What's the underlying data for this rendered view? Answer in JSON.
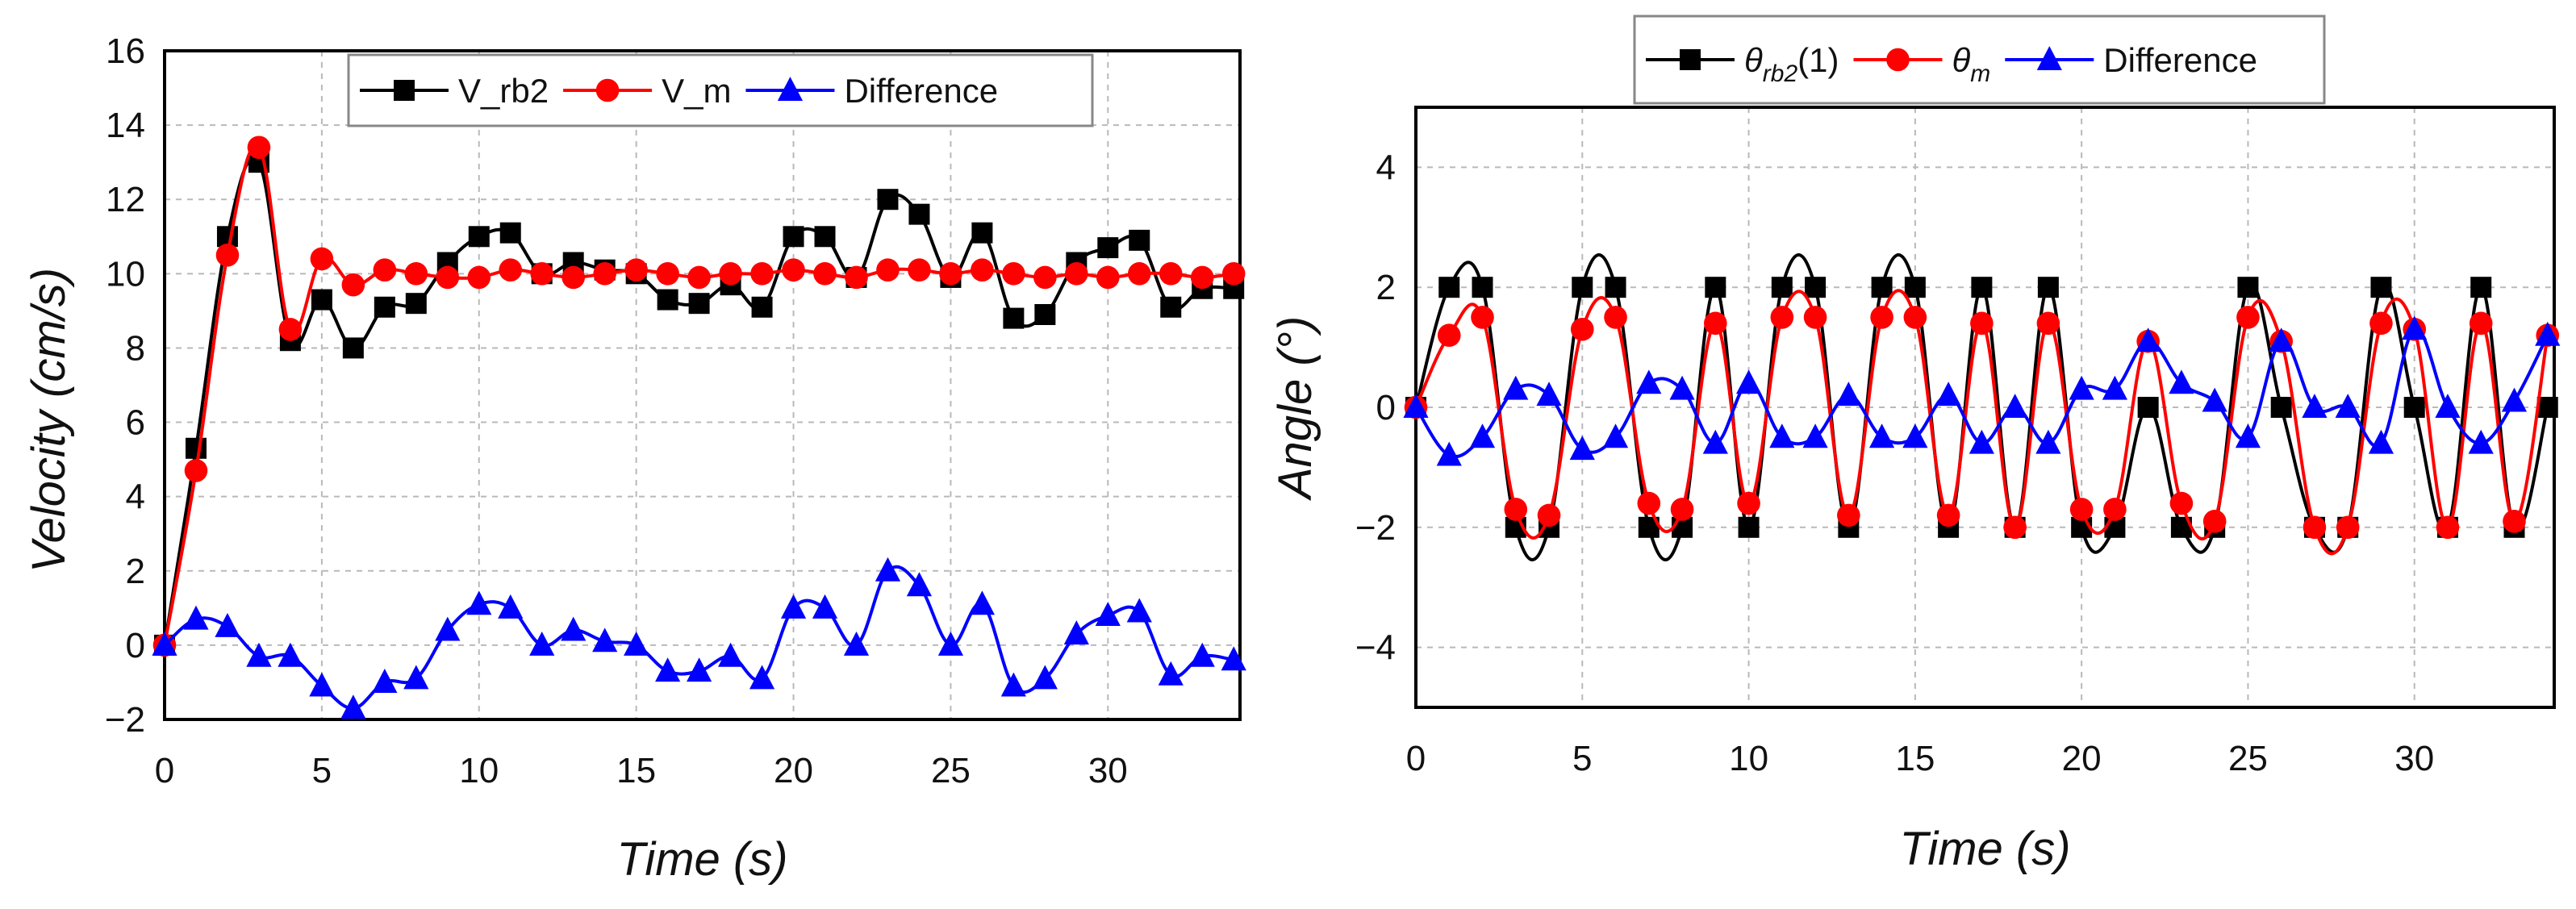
{
  "chart_data": [
    {
      "type": "line",
      "xlabel": "Time (s)",
      "ylabel": "Velocity (cm/s)",
      "xlim": [
        0,
        34.2
      ],
      "ylim": [
        -2,
        16
      ],
      "xticks": [
        "0",
        "5",
        "10",
        "15",
        "20",
        "25",
        "30"
      ],
      "yticks": [
        "16",
        "14",
        "12",
        "10",
        "8",
        "6",
        "4",
        "2",
        "0",
        "−2"
      ],
      "grid": true,
      "legend": "top-center",
      "x": [
        0,
        1,
        2,
        3,
        4,
        5,
        6,
        7,
        8,
        9,
        10,
        11,
        12,
        13,
        14,
        15,
        16,
        17,
        18,
        19,
        20,
        21,
        22,
        23,
        24,
        25,
        26,
        27,
        28,
        29,
        30,
        31,
        32,
        33,
        34
      ],
      "series": [
        {
          "name": "V_rb2",
          "color": "#000000",
          "marker": "square",
          "values": [
            0,
            5.3,
            11,
            13,
            8.2,
            9.3,
            8,
            9.1,
            9.2,
            10.3,
            11,
            11.1,
            10,
            10.3,
            10.1,
            10,
            9.3,
            9.2,
            9.7,
            9.1,
            11,
            11,
            9.9,
            12,
            11.6,
            9.9,
            11.1,
            8.8,
            8.9,
            10.3,
            10.7,
            10.9,
            9.1,
            9.6,
            9.6
          ]
        },
        {
          "name": "V_m",
          "color": "#ff0000",
          "marker": "circle",
          "values": [
            0,
            4.7,
            10.5,
            13.4,
            8.5,
            10.4,
            9.7,
            10.1,
            10,
            9.9,
            9.9,
            10.1,
            10,
            9.9,
            10,
            10.1,
            10,
            9.9,
            10,
            10,
            10.1,
            10,
            9.9,
            10.1,
            10.1,
            10,
            10.1,
            10,
            9.9,
            10,
            9.9,
            10,
            10,
            9.9,
            10
          ]
        },
        {
          "name": "Difference",
          "color": "#0000ff",
          "marker": "triangle",
          "values": [
            0,
            0.7,
            0.5,
            -0.3,
            -0.3,
            -1.1,
            -1.7,
            -1,
            -0.9,
            0.4,
            1.1,
            1,
            0,
            0.4,
            0.1,
            0,
            -0.7,
            -0.7,
            -0.3,
            -0.9,
            1,
            1,
            0,
            2,
            1.6,
            0,
            1.1,
            -1.1,
            -0.9,
            0.3,
            0.8,
            0.9,
            -0.8,
            -0.3,
            -0.4
          ]
        }
      ]
    },
    {
      "type": "line",
      "xlabel": "Time (s)",
      "ylabel": "Angle (°)",
      "xlim": [
        0,
        34.2
      ],
      "ylim": [
        -5,
        5
      ],
      "xticks": [
        "0",
        "5",
        "10",
        "15",
        "20",
        "25",
        "30"
      ],
      "yticks": [
        "4",
        "2",
        "0",
        "−2",
        "−4"
      ],
      "grid": true,
      "legend": "top-center (above plot)",
      "x": [
        0,
        1,
        2,
        3,
        4,
        5,
        6,
        7,
        8,
        9,
        10,
        11,
        12,
        13,
        14,
        15,
        16,
        17,
        18,
        19,
        20,
        21,
        22,
        23,
        24,
        25,
        26,
        27,
        28,
        29,
        30,
        31,
        32,
        33,
        34
      ],
      "series": [
        {
          "name": "θrb2(1)",
          "label_main": "θ",
          "label_sub": "rb2",
          "label_tail": "(1)",
          "color": "#000000",
          "marker": "square",
          "values": [
            0,
            2,
            2,
            -2,
            -2,
            2,
            2,
            -2,
            -2,
            2,
            -2,
            2,
            2,
            -2,
            2,
            2,
            -2,
            2,
            -2,
            2,
            -2,
            -2,
            0,
            -2,
            -2,
            2,
            0,
            -2,
            -2,
            2,
            0,
            -2,
            2,
            -2,
            0
          ]
        },
        {
          "name": "θm",
          "label_main": "θ",
          "label_sub": "m",
          "label_tail": "",
          "color": "#ff0000",
          "marker": "circle",
          "values": [
            0,
            1.2,
            1.5,
            -1.7,
            -1.8,
            1.3,
            1.5,
            -1.6,
            -1.7,
            1.4,
            -1.6,
            1.5,
            1.5,
            -1.8,
            1.5,
            1.5,
            -1.8,
            1.4,
            -2,
            1.4,
            -1.7,
            -1.7,
            1.1,
            -1.6,
            -1.9,
            1.5,
            1.1,
            -2,
            -2,
            1.4,
            1.3,
            -2,
            1.4,
            -1.9,
            1.2
          ]
        },
        {
          "name": "Difference",
          "label_main": "Difference",
          "label_sub": "",
          "label_tail": "",
          "color": "#0000ff",
          "marker": "triangle",
          "values": [
            0,
            -0.8,
            -0.5,
            0.3,
            0.2,
            -0.7,
            -0.5,
            0.4,
            0.3,
            -0.6,
            0.4,
            -0.5,
            -0.5,
            0.2,
            -0.5,
            -0.5,
            0.2,
            -0.6,
            0,
            -0.6,
            0.3,
            0.3,
            1.1,
            0.4,
            0.1,
            -0.5,
            1.1,
            0,
            0,
            -0.6,
            1.3,
            0,
            -0.6,
            0.1,
            1.2
          ]
        }
      ]
    }
  ]
}
